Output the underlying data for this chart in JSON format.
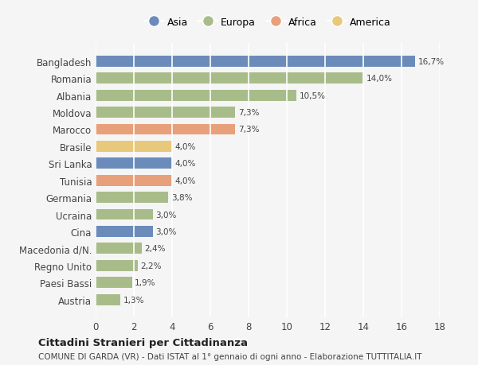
{
  "countries": [
    "Bangladesh",
    "Romania",
    "Albania",
    "Moldova",
    "Marocco",
    "Brasile",
    "Sri Lanka",
    "Tunisia",
    "Germania",
    "Ucraina",
    "Cina",
    "Macedonia d/N.",
    "Regno Unito",
    "Paesi Bassi",
    "Austria"
  ],
  "values": [
    16.7,
    14.0,
    10.5,
    7.3,
    7.3,
    4.0,
    4.0,
    4.0,
    3.8,
    3.0,
    3.0,
    2.4,
    2.2,
    1.9,
    1.3
  ],
  "colors": [
    "#6b8cba",
    "#a8bc8a",
    "#a8bc8a",
    "#a8bc8a",
    "#e8a07a",
    "#e8c87a",
    "#6b8cba",
    "#e8a07a",
    "#a8bc8a",
    "#a8bc8a",
    "#6b8cba",
    "#a8bc8a",
    "#a8bc8a",
    "#a8bc8a",
    "#a8bc8a"
  ],
  "legend": [
    {
      "label": "Asia",
      "color": "#6b8cba"
    },
    {
      "label": "Europa",
      "color": "#a8bc8a"
    },
    {
      "label": "Africa",
      "color": "#e8a07a"
    },
    {
      "label": "America",
      "color": "#e8c87a"
    }
  ],
  "xlim": [
    0,
    18
  ],
  "xticks": [
    0,
    2,
    4,
    6,
    8,
    10,
    12,
    14,
    16,
    18
  ],
  "title": "Cittadini Stranieri per Cittadinanza",
  "subtitle": "COMUNE DI GARDA (VR) - Dati ISTAT al 1° gennaio di ogni anno - Elaborazione TUTTITALIA.IT",
  "bg_color": "#f5f5f5",
  "grid_color": "#ffffff",
  "bar_height": 0.65
}
